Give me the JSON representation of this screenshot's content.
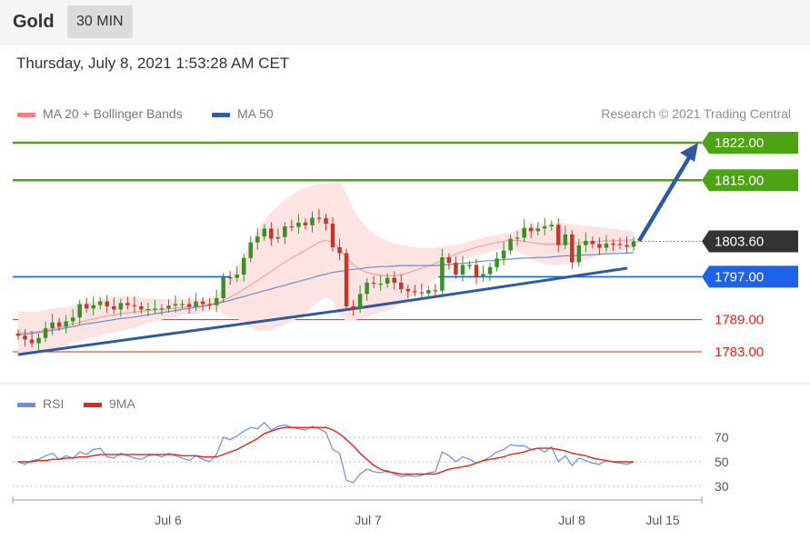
{
  "header": {
    "symbol": "Gold",
    "interval": "30 MIN"
  },
  "timestamp": "Thursday, July 8, 2021 1:53:28 AM CET",
  "legend": {
    "ma20": {
      "label": "MA 20 + Bollinger Bands",
      "color": "#f08080"
    },
    "ma50": {
      "label": "MA 50",
      "color": "#2f5fa3"
    }
  },
  "credit": "Research © 2021 Trading Central",
  "rsi_legend": {
    "rsi": {
      "label": "RSI",
      "color": "#6a8fe0"
    },
    "ma9": {
      "label": "9MA",
      "color": "#e8231a"
    }
  },
  "colors": {
    "up": "#3a8f2a",
    "down": "#c0392b",
    "target": "#4ca313",
    "current": "#333333",
    "pivot": "#1e62e8",
    "support": "#e8231a",
    "trend": "#2e5aa0"
  },
  "chart_data": [
    {
      "type": "candlestick",
      "title": "",
      "ylim": [
        1776,
        1830
      ],
      "x_ticks": [
        "Jul 6",
        "Jul 7",
        "Jul 8",
        "Jul 15"
      ],
      "levels": [
        {
          "label": "1822.00",
          "value": 1822,
          "kind": "target"
        },
        {
          "label": "1815.00",
          "value": 1815,
          "kind": "target"
        },
        {
          "label": "1803.60",
          "value": 1803.6,
          "kind": "current"
        },
        {
          "label": "1797.00",
          "value": 1797,
          "kind": "pivot"
        },
        {
          "label": "1789.00",
          "value": 1789,
          "kind": "support"
        },
        {
          "label": "1783.00",
          "value": 1783,
          "kind": "support"
        }
      ],
      "close": [
        1786.0,
        1785.3,
        1784.6,
        1785.6,
        1787.4,
        1788.5,
        1787.7,
        1788.7,
        1789.4,
        1791.9,
        1791.1,
        1791.7,
        1792.4,
        1791.5,
        1790.9,
        1792.1,
        1791.7,
        1791.5,
        1790.9,
        1791.0,
        1791.1,
        1791.1,
        1791.6,
        1791.9,
        1791.9,
        1791.4,
        1792.4,
        1791.9,
        1791.7,
        1793.0,
        1796.9,
        1796.8,
        1797.4,
        1800.5,
        1803.4,
        1804.5,
        1806.0,
        1804.1,
        1804.4,
        1806.4,
        1806.3,
        1807.1,
        1806.6,
        1808.0,
        1807.9,
        1806.9,
        1802.5,
        1801.4,
        1791.5,
        1791.1,
        1793.8,
        1795.9,
        1795.7,
        1795.7,
        1796.8,
        1795.9,
        1794.7,
        1794.3,
        1794.1,
        1793.9,
        1794.5,
        1794.4,
        1800.6,
        1799.6,
        1797.4,
        1799.2,
        1799.2,
        1796.9,
        1797.5,
        1798.8,
        1800.4,
        1801.9,
        1804.1,
        1804.3,
        1806.1,
        1805.5,
        1806.0,
        1806.4,
        1806.7,
        1802.9,
        1804.9,
        1799.7,
        1802.9,
        1803.7,
        1803.1,
        1802.4,
        1803.2,
        1803.1,
        1802.9,
        1802.6,
        1803.6
      ],
      "ma20": [
        1786.6,
        1786.6,
        1786.7,
        1786.8,
        1787.0,
        1787.3,
        1787.5,
        1787.8,
        1788.2,
        1788.5,
        1788.9,
        1789.1,
        1789.4,
        1789.7,
        1789.9,
        1790.1,
        1790.3,
        1790.4,
        1790.6,
        1790.7,
        1790.8,
        1790.9,
        1791.0,
        1791.1,
        1791.3,
        1791.4,
        1791.5,
        1791.6,
        1791.8,
        1792.1,
        1792.6,
        1793.2,
        1793.9,
        1794.7,
        1795.5,
        1796.3,
        1797.2,
        1798.0,
        1798.9,
        1799.7,
        1800.5,
        1801.2,
        1801.9,
        1802.7,
        1803.4,
        1803.8,
        1803.5,
        1802.3,
        1800.6,
        1799.2,
        1798.4,
        1797.8,
        1797.5,
        1797.3,
        1797.2,
        1797.2,
        1797.4,
        1797.7,
        1798.2,
        1798.6,
        1799.0,
        1799.5,
        1800.1,
        1800.7,
        1801.2,
        1801.7,
        1802.1,
        1802.5,
        1802.8,
        1803.1,
        1803.4,
        1803.6,
        1803.8,
        1803.8,
        1803.6,
        1803.4,
        1803.2,
        1803.1,
        1803.1,
        1803.1,
        1803.1,
        1803.2,
        1803.3,
        1803.4,
        1803.5,
        1803.6,
        1803.7,
        1803.7,
        1803.8,
        1803.8,
        1803.9
      ],
      "ma50": [
        1786.2,
        1786.3,
        1786.4,
        1786.6,
        1786.8,
        1787.0,
        1787.2,
        1787.5,
        1787.7,
        1788.0,
        1788.2,
        1788.4,
        1788.6,
        1788.8,
        1789.0,
        1789.2,
        1789.3,
        1789.5,
        1789.7,
        1789.9,
        1790.1,
        1790.3,
        1790.5,
        1790.7,
        1790.9,
        1791.1,
        1791.3,
        1791.5,
        1791.7,
        1792.0,
        1792.3,
        1792.6,
        1793.0,
        1793.3,
        1793.7,
        1794.0,
        1794.4,
        1794.7,
        1795.1,
        1795.4,
        1795.8,
        1796.1,
        1796.5,
        1796.8,
        1797.2,
        1797.5,
        1797.8,
        1798.0,
        1798.2,
        1798.4,
        1798.5,
        1798.7,
        1798.8,
        1798.9,
        1798.9,
        1799.0,
        1799.1,
        1799.1,
        1799.1,
        1799.1,
        1799.1,
        1799.1,
        1799.2,
        1799.3,
        1799.4,
        1799.5,
        1799.6,
        1799.8,
        1799.9,
        1800.0,
        1800.1,
        1800.2,
        1800.3,
        1800.4,
        1800.5,
        1800.5,
        1800.6,
        1800.6,
        1800.7,
        1800.8,
        1800.9,
        1800.9,
        1801.0,
        1801.1,
        1801.1,
        1801.2,
        1801.3,
        1801.3,
        1801.4,
        1801.4,
        1801.5
      ],
      "bb_upper": [
        1790.5,
        1790.5,
        1790.5,
        1790.5,
        1790.8,
        1791.1,
        1791.3,
        1791.4,
        1791.6,
        1792.2,
        1792.4,
        1792.5,
        1792.8,
        1793.0,
        1793.2,
        1793.3,
        1793.4,
        1793.3,
        1793.2,
        1793.0,
        1792.9,
        1792.8,
        1792.8,
        1792.8,
        1792.8,
        1792.7,
        1792.9,
        1792.9,
        1792.9,
        1793.2,
        1795.2,
        1797.0,
        1798.6,
        1801.0,
        1803.5,
        1805.6,
        1807.5,
        1809.0,
        1810.2,
        1811.4,
        1812.3,
        1813.1,
        1813.6,
        1814.0,
        1814.3,
        1814.4,
        1814.5,
        1814.8,
        1812.5,
        1809.6,
        1807.6,
        1806.1,
        1805.0,
        1804.2,
        1803.7,
        1803.2,
        1802.9,
        1802.7,
        1802.5,
        1802.4,
        1802.4,
        1802.4,
        1802.7,
        1802.8,
        1802.9,
        1803.2,
        1803.6,
        1804.0,
        1804.3,
        1804.6,
        1804.8,
        1805.1,
        1805.4,
        1805.8,
        1806.1,
        1806.4,
        1806.7,
        1806.8,
        1807.0,
        1807.0,
        1806.9,
        1806.8,
        1806.7,
        1806.5,
        1806.4,
        1806.3,
        1806.1,
        1806.0,
        1805.8,
        1805.6,
        1805.4
      ],
      "bb_lower": [
        1782.7,
        1782.7,
        1782.9,
        1783.1,
        1783.2,
        1783.5,
        1783.7,
        1784.2,
        1784.8,
        1784.8,
        1785.4,
        1785.7,
        1786.0,
        1786.4,
        1786.6,
        1786.9,
        1787.2,
        1787.5,
        1788.0,
        1788.4,
        1788.7,
        1789.0,
        1789.2,
        1789.4,
        1789.8,
        1790.1,
        1790.1,
        1790.3,
        1790.7,
        1791.0,
        1790.0,
        1789.4,
        1789.2,
        1788.4,
        1787.5,
        1787.0,
        1786.9,
        1787.0,
        1787.6,
        1788.0,
        1788.7,
        1789.3,
        1790.2,
        1791.4,
        1792.5,
        1793.2,
        1792.5,
        1789.8,
        1788.7,
        1788.8,
        1789.2,
        1789.5,
        1790.0,
        1790.4,
        1790.7,
        1791.2,
        1791.9,
        1792.7,
        1793.9,
        1794.8,
        1795.6,
        1796.6,
        1797.5,
        1798.6,
        1799.5,
        1800.2,
        1800.6,
        1801.0,
        1801.3,
        1801.6,
        1802.0,
        1802.1,
        1802.2,
        1801.8,
        1801.1,
        1800.4,
        1799.7,
        1799.4,
        1799.2,
        1799.2,
        1799.3,
        1799.6,
        1799.9,
        1800.3,
        1800.6,
        1800.9,
        1801.3,
        1801.4,
        1801.8,
        1802.0,
        1802.4
      ]
    },
    {
      "type": "line",
      "title": "",
      "ylim": [
        20,
        90
      ],
      "y_ticks": [
        "70",
        "50",
        "30"
      ],
      "rsi": [
        50,
        48,
        51,
        52,
        55,
        57,
        52,
        55,
        53,
        58,
        56,
        60,
        61,
        54,
        53,
        57,
        55,
        53,
        52,
        55,
        56,
        54,
        57,
        55,
        53,
        51,
        55,
        52,
        50,
        56,
        70,
        68,
        71,
        75,
        78,
        77,
        82,
        76,
        79,
        80,
        78,
        77,
        76,
        79,
        77,
        74,
        60,
        57,
        35,
        33,
        40,
        44,
        42,
        41,
        43,
        40,
        38,
        39,
        38,
        39,
        41,
        42,
        58,
        55,
        50,
        54,
        52,
        49,
        51,
        54,
        58,
        60,
        64,
        63,
        63,
        60,
        61,
        58,
        62,
        50,
        55,
        47,
        53,
        51,
        49,
        48,
        51,
        50,
        49,
        48,
        50
      ],
      "ma9": [
        50,
        50,
        50,
        51,
        51,
        52,
        52,
        53,
        53,
        54,
        54,
        55,
        56,
        56,
        56,
        56,
        56,
        56,
        56,
        56,
        56,
        56,
        56,
        56,
        55,
        55,
        55,
        54,
        54,
        54,
        56,
        58,
        60,
        63,
        66,
        69,
        73,
        75,
        77,
        78,
        78,
        78,
        78,
        78,
        78,
        78,
        76,
        73,
        68,
        63,
        57,
        52,
        47,
        44,
        42,
        41,
        40,
        40,
        40,
        40,
        40,
        40,
        42,
        44,
        45,
        46,
        47,
        49,
        51,
        52,
        53,
        54,
        56,
        57,
        58,
        60,
        61,
        61,
        61,
        60,
        59,
        57,
        56,
        55,
        53,
        52,
        51,
        50,
        50,
        50,
        50
      ]
    }
  ]
}
